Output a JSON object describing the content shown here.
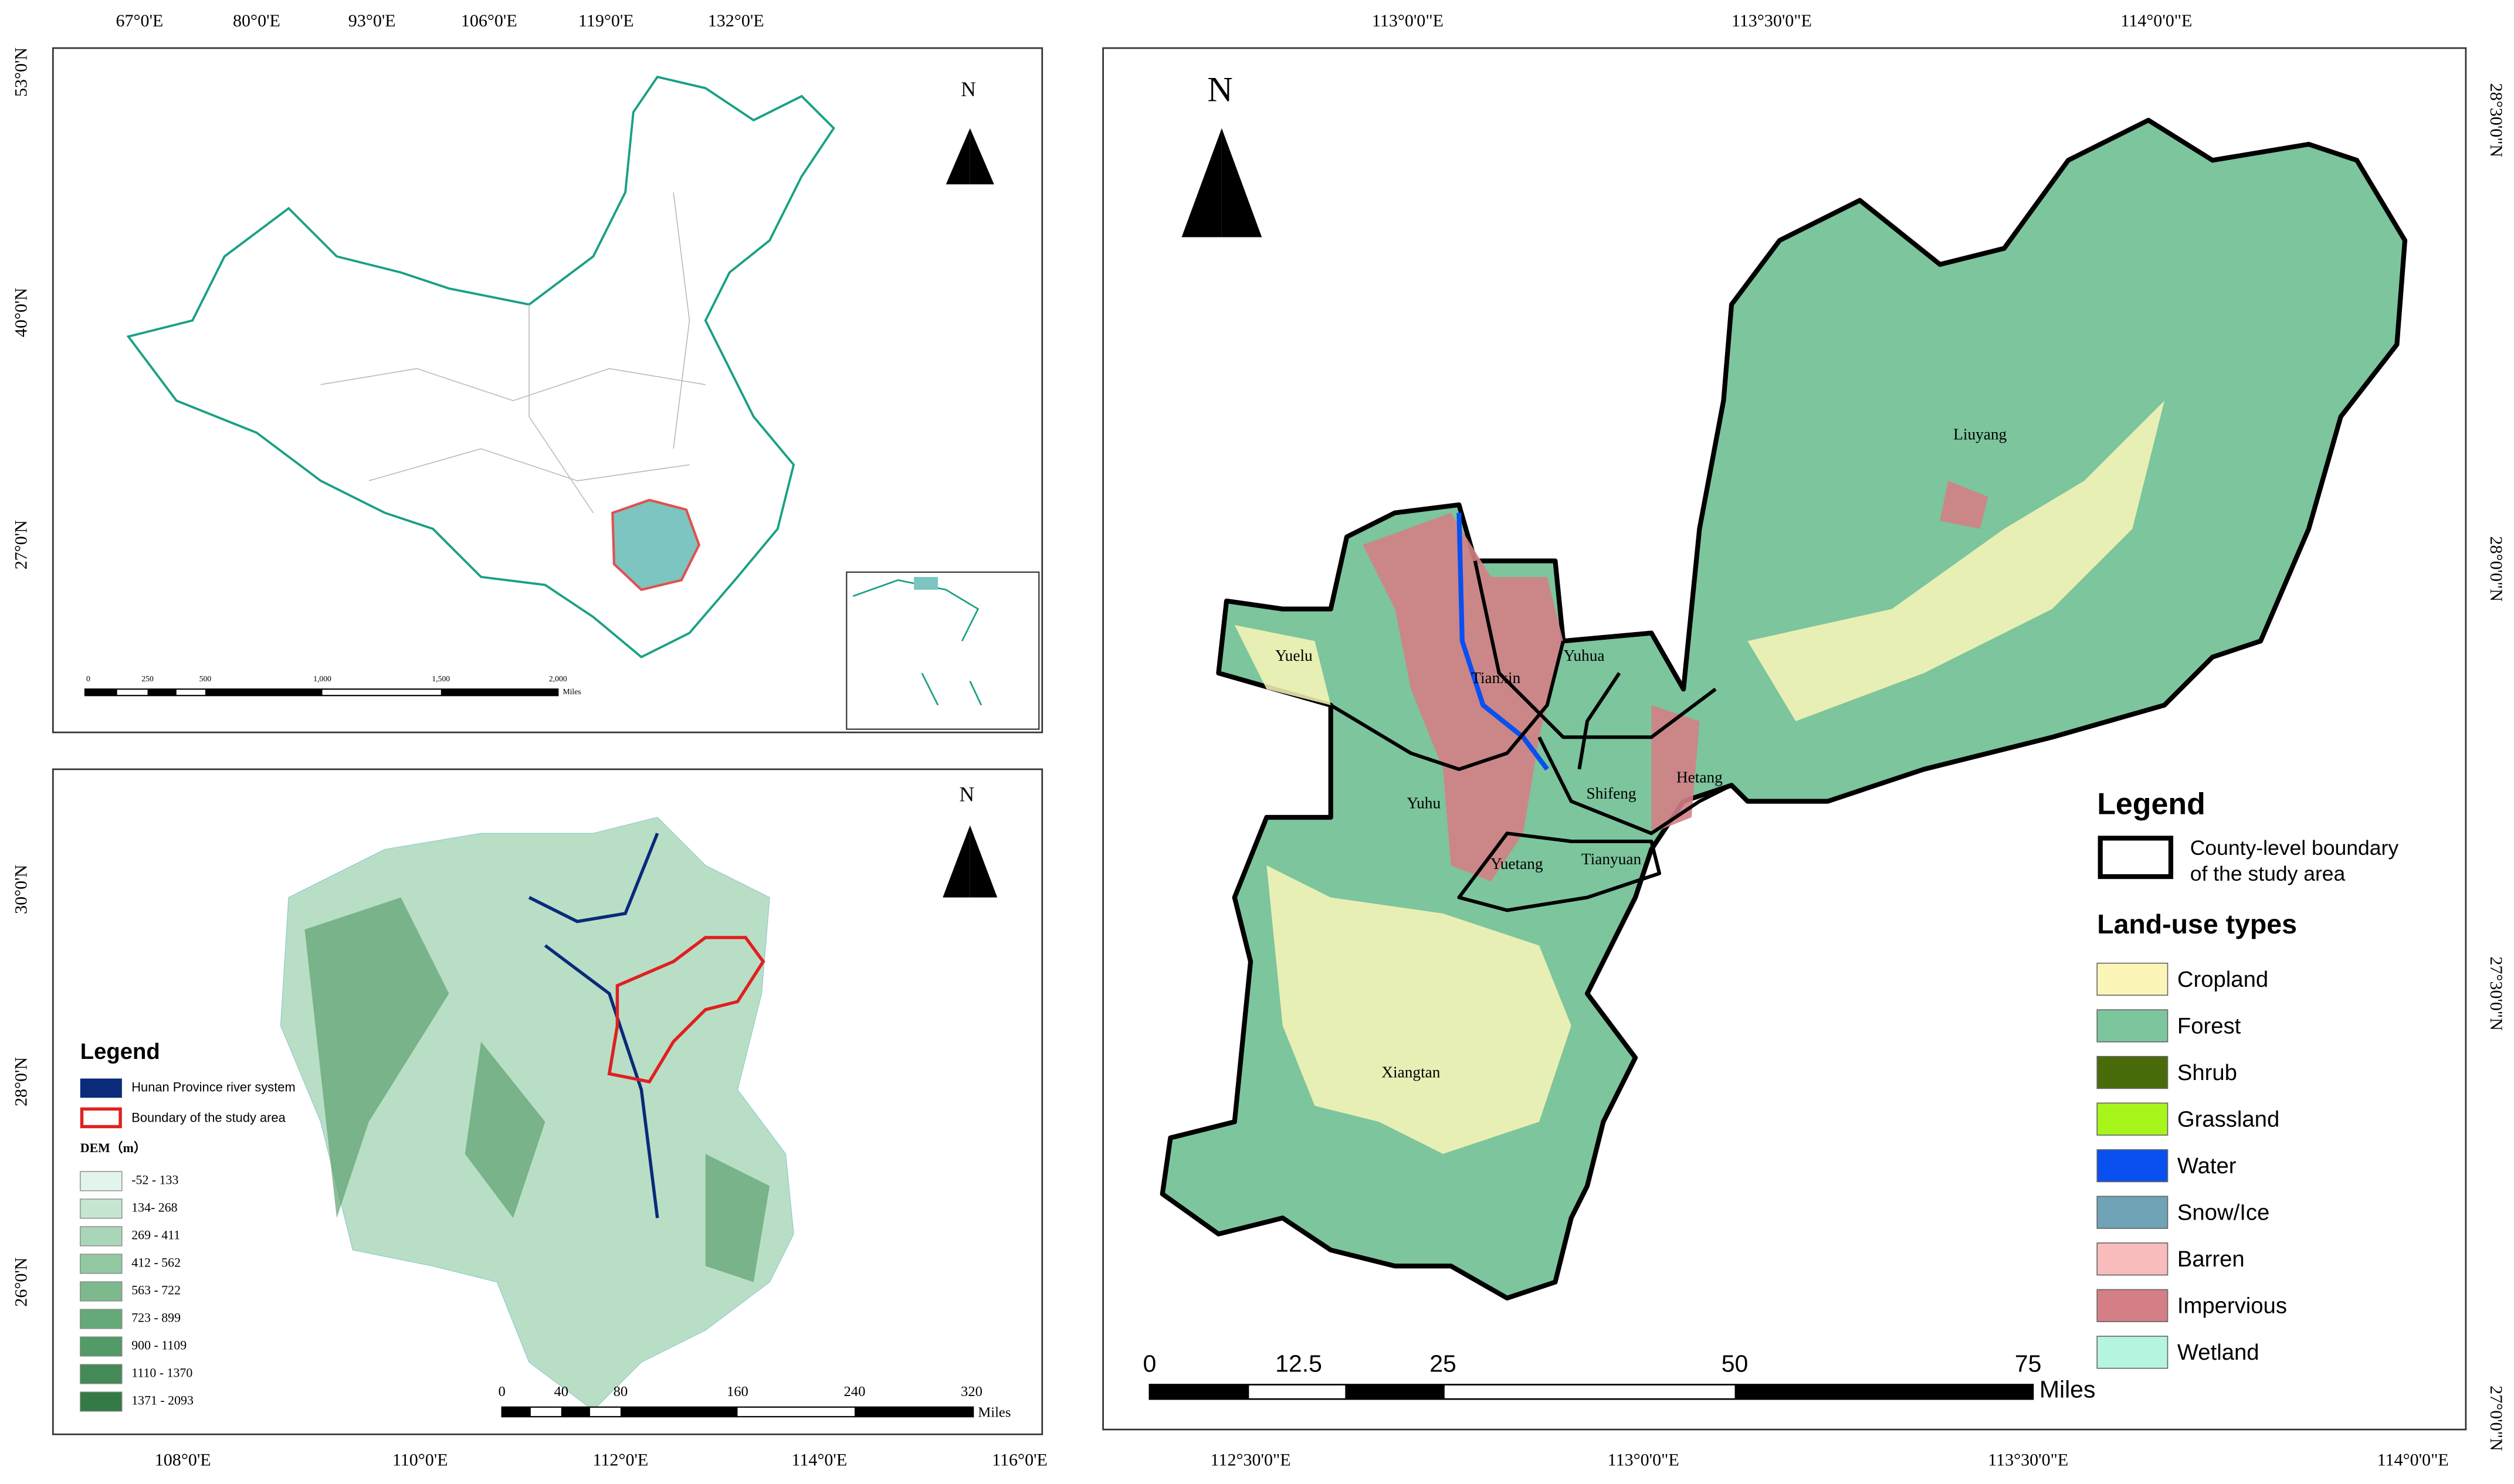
{
  "panels": [
    {
      "north": "N",
      "top_ticks": [
        "67°0'E",
        "80°0'E",
        "93°0'E",
        "106°0'E",
        "119°0'E",
        "132°0'E"
      ],
      "left_ticks": [
        "53°0'N",
        "40°0'N",
        "27°0'N"
      ],
      "scale": {
        "labels": [
          "0",
          "250",
          "500",
          "1,000",
          "1,500",
          "2,000"
        ],
        "unit": "Miles"
      }
    },
    {
      "north": "N",
      "bottom_ticks": [
        "108°0'E",
        "110°0'E",
        "112°0'E",
        "114°0'E",
        "116°0'E"
      ],
      "left_ticks": [
        "30°0'N",
        "28°0'N",
        "26°0'N"
      ],
      "legend": {
        "title": "Legend",
        "items": [
          {
            "label": "Hunan Province river system",
            "color": "#0a2a7a"
          },
          {
            "label": "Boundary of the study area",
            "color": "#e02020"
          }
        ],
        "dem_title": "DEM（m）",
        "dem_classes": [
          {
            "label": "-52 - 133",
            "color": "#e3f4ea"
          },
          {
            "label": "134- 268",
            "color": "#c6e6d1"
          },
          {
            "label": "269 - 411",
            "color": "#a9d6b8"
          },
          {
            "label": "412 - 562",
            "color": "#92c8a2"
          },
          {
            "label": "563 - 722",
            "color": "#7cb98d"
          },
          {
            "label": "723 - 899",
            "color": "#66a978"
          },
          {
            "label": "900 - 1109",
            "color": "#529a66"
          },
          {
            "label": "1110 - 1370",
            "color": "#438a56"
          },
          {
            "label": "1371 - 2093",
            "color": "#347a47"
          }
        ]
      },
      "scale": {
        "labels": [
          "0",
          "40",
          "80",
          "160",
          "240",
          "320"
        ],
        "unit": "Miles"
      }
    },
    {
      "north": "N",
      "top_ticks": [
        "113°0'0\"E",
        "113°30'0\"E",
        "114°0'0\"E"
      ],
      "bottom_ticks": [
        "112°30'0\"E",
        "113°0'0\"E",
        "113°30'0\"E",
        "114°0'0\"E"
      ],
      "right_ticks": [
        "28°30'0\"N",
        "28°0'0\"N",
        "27°30'0\"N",
        "27°0'0\"N"
      ],
      "districts": [
        "Liuyang",
        "Yuelu",
        "Tianxin",
        "Yuhua",
        "Yuhu",
        "Shifeng",
        "Hetang",
        "Yuetang",
        "Tianyuan",
        "Xiangtan"
      ],
      "legend": {
        "title": "Legend",
        "boundary_lines": [
          "County-level boundary",
          "of the study area"
        ],
        "landuse_title": "Land-use types",
        "items": [
          {
            "label": "Cropland",
            "color": "#fbf6b8"
          },
          {
            "label": "Forest",
            "color": "#7cc59d"
          },
          {
            "label": "Shrub",
            "color": "#4a6b0a"
          },
          {
            "label": "Grassland",
            "color": "#a8f51c"
          },
          {
            "label": "Water",
            "color": "#0a4ff0"
          },
          {
            "label": "Snow/Ice",
            "color": "#6fa3b5"
          },
          {
            "label": "Barren",
            "color": "#f8bcbc"
          },
          {
            "label": "Impervious",
            "color": "#d47f86"
          },
          {
            "label": "Wetland",
            "color": "#b5f5df"
          }
        ]
      },
      "scale": {
        "labels": [
          "0",
          "12.5",
          "25",
          "50",
          "75"
        ],
        "unit": "Miles"
      }
    }
  ]
}
